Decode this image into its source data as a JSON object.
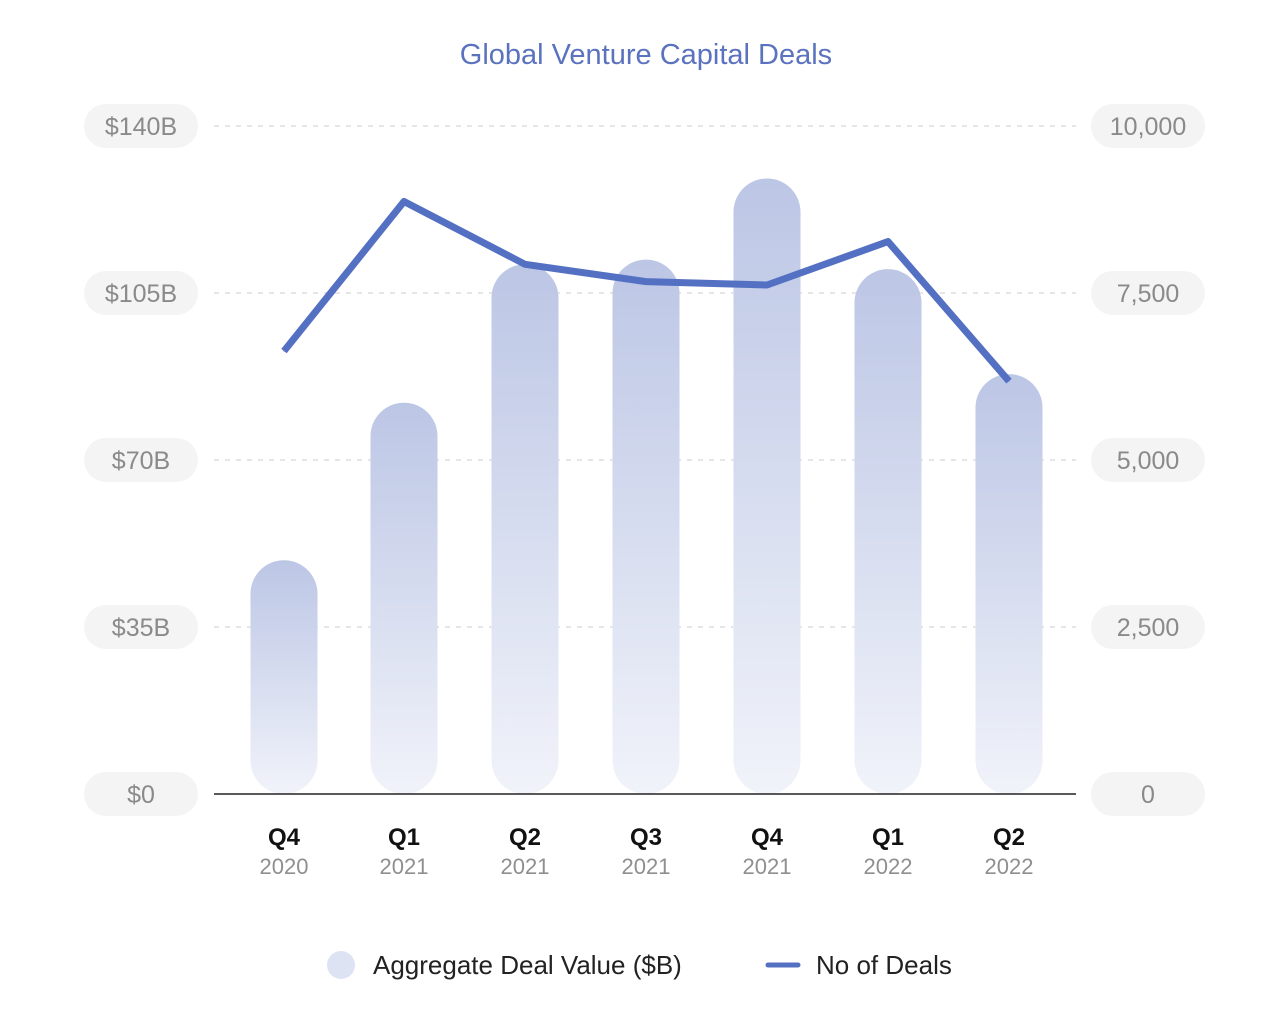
{
  "chart_data": {
    "type": "bar",
    "title": "Global Venture Capital Deals",
    "categories": [
      {
        "quarter": "Q4",
        "year": "2020"
      },
      {
        "quarter": "Q1",
        "year": "2021"
      },
      {
        "quarter": "Q2",
        "year": "2021"
      },
      {
        "quarter": "Q3",
        "year": "2021"
      },
      {
        "quarter": "Q4",
        "year": "2021"
      },
      {
        "quarter": "Q1",
        "year": "2022"
      },
      {
        "quarter": "Q2",
        "year": "2022"
      }
    ],
    "series": [
      {
        "name": "Aggregate Deal Value ($B)",
        "type": "bar",
        "axis": "left",
        "values": [
          49,
          82,
          111,
          112,
          129,
          110,
          88
        ]
      },
      {
        "name": "No of Deals",
        "type": "line",
        "axis": "right",
        "values": [
          6630,
          8870,
          7930,
          7670,
          7620,
          8270,
          6180
        ]
      }
    ],
    "y_left": {
      "ylim": [
        0,
        140
      ],
      "ticks": [
        "$0",
        "$35B",
        "$70B",
        "$105B",
        "$140B"
      ],
      "tick_values": [
        0,
        35,
        70,
        105,
        140
      ]
    },
    "y_right": {
      "ylim": [
        0,
        10000
      ],
      "ticks": [
        "0",
        "2,500",
        "5,000",
        "7,500",
        "10,000"
      ],
      "tick_values": [
        0,
        2500,
        5000,
        7500,
        10000
      ]
    },
    "grid": true,
    "legend_position": "bottom",
    "colors": {
      "title": "#5b72bf",
      "line": "#5470c2",
      "bar_top": "#bcc6e5",
      "bar_bottom": "#f1f3fa",
      "legend_bar": "#dde3f3"
    }
  }
}
